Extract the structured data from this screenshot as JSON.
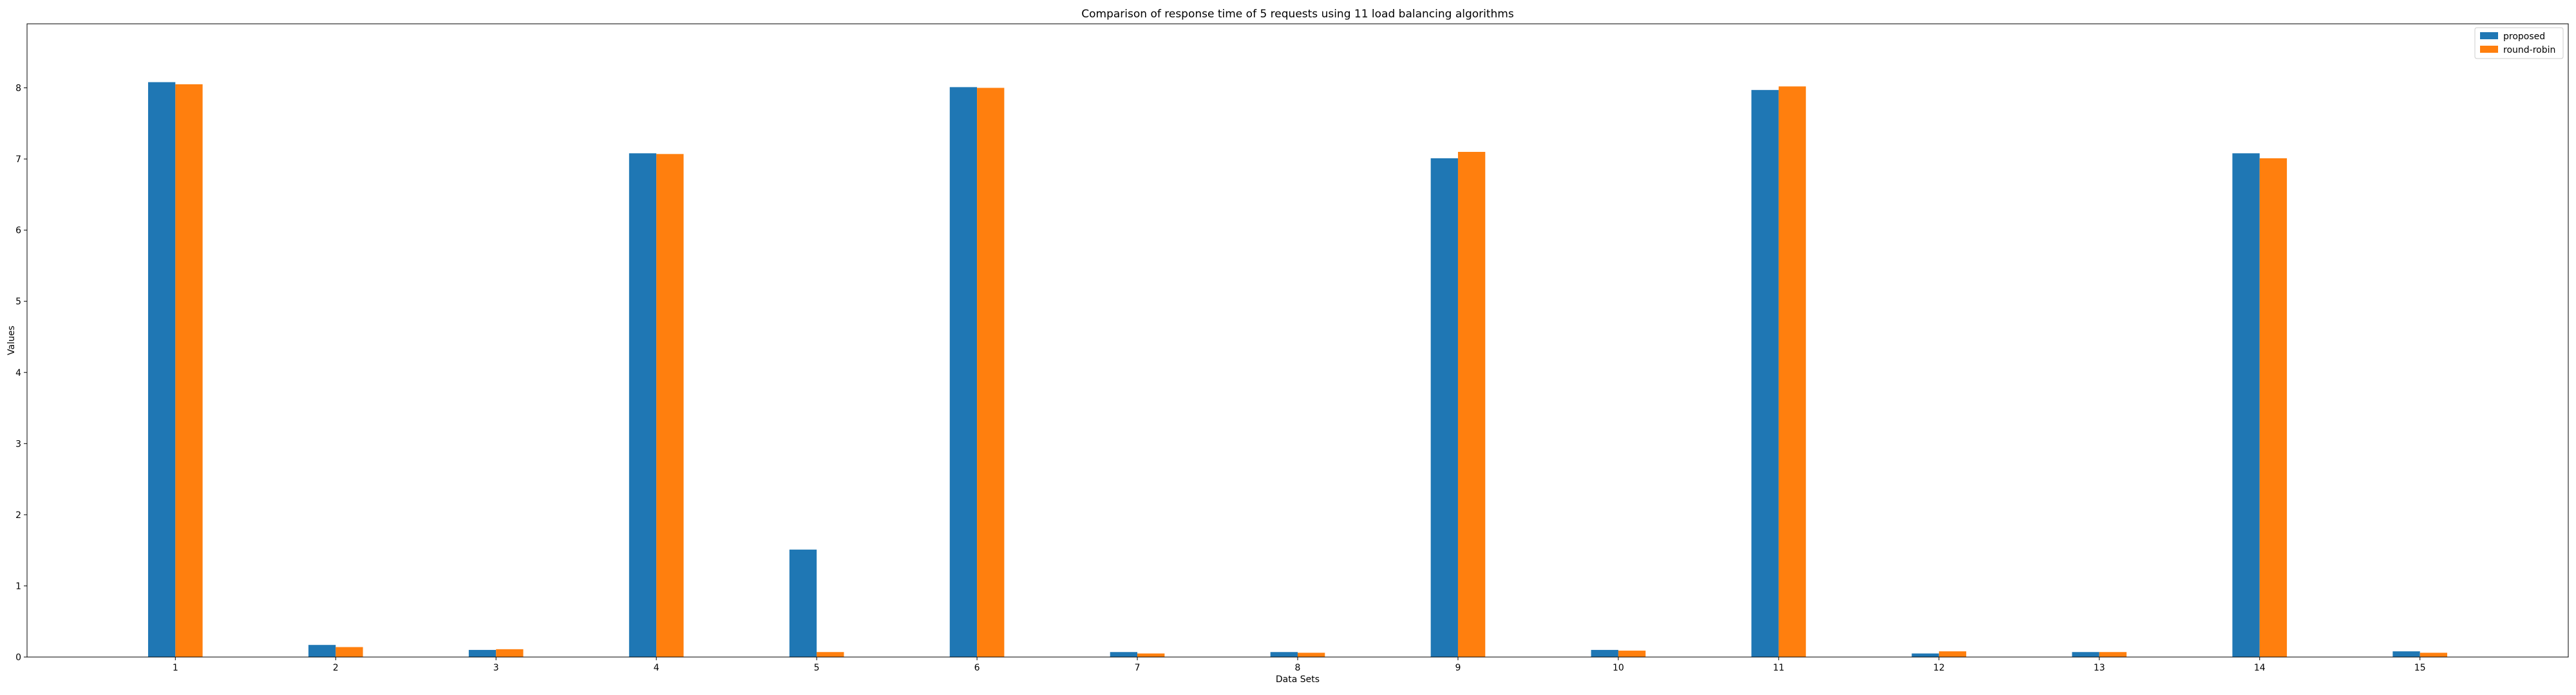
{
  "chart_data": {
    "type": "bar",
    "title": "Comparison of response time of 5 requests using 11 load balancing algorithms",
    "xlabel": "Data Sets",
    "ylabel": "Values",
    "categories": [
      "1",
      "2",
      "3",
      "4",
      "5",
      "6",
      "7",
      "8",
      "9",
      "10",
      "11",
      "12",
      "13",
      "14",
      "15"
    ],
    "series": [
      {
        "name": "proposed",
        "color": "#1f77b4",
        "values": [
          8.08,
          0.17,
          0.1,
          7.08,
          1.51,
          8.01,
          0.07,
          0.07,
          7.01,
          0.1,
          7.97,
          0.05,
          0.07,
          7.08,
          0.08
        ]
      },
      {
        "name": "round-robin",
        "color": "#ff7f0e",
        "values": [
          8.05,
          0.14,
          0.11,
          7.07,
          0.07,
          8.0,
          0.05,
          0.06,
          7.1,
          0.09,
          8.02,
          0.08,
          0.07,
          7.01,
          0.06
        ]
      }
    ],
    "ylim": [
      0,
      8.9
    ],
    "yticks": [
      0,
      1,
      2,
      3,
      4,
      5,
      6,
      7,
      8
    ],
    "grid": false,
    "legend_position": "top-right"
  }
}
